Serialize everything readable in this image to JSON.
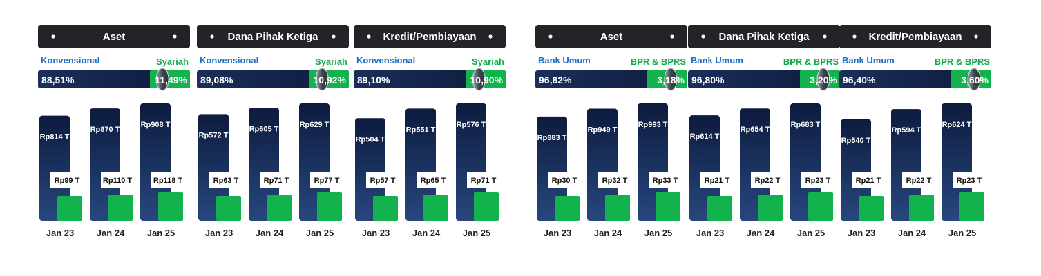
{
  "colors": {
    "title_bg": "#222428",
    "blue_dark": "#0d1b3e",
    "blue_mid": "#27477e",
    "green": "#12b24c",
    "label_blue": "#1f6fc5",
    "label_green": "#12a84a"
  },
  "chart_data": [
    {
      "type": "bar",
      "title": "Aset",
      "categories": [
        "Jan 23",
        "Jan 24",
        "Jan 25"
      ],
      "share": {
        "left_label": "Konvensional",
        "left_value": "88,51%",
        "right_label": "Syariah",
        "right_value": "11,49%",
        "left_fraction": 0.8851
      },
      "series": [
        {
          "name": "Konvensional",
          "values": [
            814,
            870,
            908
          ],
          "labels": [
            "Rp814 T",
            "Rp870 T",
            "Rp908 T"
          ]
        },
        {
          "name": "Syariah",
          "values": [
            99,
            110,
            118
          ],
          "labels": [
            "Rp99 T",
            "Rp110 T",
            "Rp118 T"
          ]
        }
      ]
    },
    {
      "type": "bar",
      "title": "Dana Pihak Ketiga",
      "categories": [
        "Jan 23",
        "Jan 24",
        "Jan 25"
      ],
      "share": {
        "left_label": "Konvensional",
        "left_value": "89,08%",
        "right_label": "Syariah",
        "right_value": "10,92%",
        "left_fraction": 0.8908
      },
      "series": [
        {
          "name": "Konvensional",
          "values": [
            572,
            605,
            629
          ],
          "labels": [
            "Rp572 T",
            "Rp605 T",
            "Rp629 T"
          ]
        },
        {
          "name": "Syariah",
          "values": [
            63,
            71,
            77
          ],
          "labels": [
            "Rp63 T",
            "Rp71 T",
            "Rp77 T"
          ]
        }
      ]
    },
    {
      "type": "bar",
      "title": "Kredit/Pembiayaan",
      "categories": [
        "Jan 23",
        "Jan 24",
        "Jan 25"
      ],
      "share": {
        "left_label": "Konvensional",
        "left_value": "89,10%",
        "right_label": "Syariah",
        "right_value": "10,90%",
        "left_fraction": 0.891
      },
      "series": [
        {
          "name": "Konvensional",
          "values": [
            504,
            551,
            576
          ],
          "labels": [
            "Rp504 T",
            "Rp551 T",
            "Rp576 T"
          ]
        },
        {
          "name": "Syariah",
          "values": [
            57,
            65,
            71
          ],
          "labels": [
            "Rp57 T",
            "Rp65 T",
            "Rp71 T"
          ]
        }
      ]
    },
    {
      "type": "bar",
      "title": "Aset",
      "categories": [
        "Jan 23",
        "Jan 24",
        "Jan 25"
      ],
      "share": {
        "left_label": "Bank Umum",
        "left_value": "96,82%",
        "right_label": "BPR & BPRS",
        "right_value": "3,18%",
        "left_fraction": 0.9682
      },
      "series": [
        {
          "name": "Bank Umum",
          "values": [
            883,
            949,
            993
          ],
          "labels": [
            "Rp883 T",
            "Rp949 T",
            "Rp993 T"
          ]
        },
        {
          "name": "BPR & BPRS",
          "values": [
            30,
            32,
            33
          ],
          "labels": [
            "Rp30 T",
            "Rp32 T",
            "Rp33 T"
          ]
        }
      ]
    },
    {
      "type": "bar",
      "title": "Dana Pihak Ketiga",
      "categories": [
        "Jan 23",
        "Jan 24",
        "Jan 25"
      ],
      "share": {
        "left_label": "Bank Umum",
        "left_value": "96,80%",
        "right_label": "BPR & BPRS",
        "right_value": "3,20%",
        "left_fraction": 0.968
      },
      "series": [
        {
          "name": "Bank Umum",
          "values": [
            614,
            654,
            683
          ],
          "labels": [
            "Rp614 T",
            "Rp654 T",
            "Rp683 T"
          ]
        },
        {
          "name": "BPR & BPRS",
          "values": [
            21,
            22,
            23
          ],
          "labels": [
            "Rp21 T",
            "Rp22 T",
            "Rp23 T"
          ]
        }
      ]
    },
    {
      "type": "bar",
      "title": "Kredit/Pembiayaan",
      "categories": [
        "Jan 23",
        "Jan 24",
        "Jan 25"
      ],
      "share": {
        "left_label": "Bank Umum",
        "left_value": "96,40%",
        "right_label": "BPR & BPRS",
        "right_value": "3,60%",
        "left_fraction": 0.964
      },
      "series": [
        {
          "name": "Bank Umum",
          "values": [
            540,
            594,
            624
          ],
          "labels": [
            "Rp540 T",
            "Rp594 T",
            "Rp624 T"
          ]
        },
        {
          "name": "BPR & BPRS",
          "values": [
            21,
            22,
            23
          ],
          "labels": [
            "Rp21 T",
            "Rp22 T",
            "Rp23 T"
          ]
        }
      ]
    }
  ]
}
